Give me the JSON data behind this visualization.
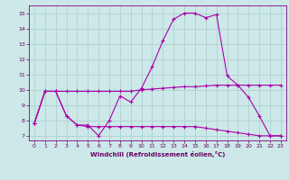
{
  "title": "",
  "xlabel": "Windchill (Refroidissement éolien,°C)",
  "background_color": "#cce8e8",
  "grid_color": "#aacccc",
  "line_color": "#aa00aa",
  "xlim": [
    -0.5,
    23.5
  ],
  "ylim": [
    6.7,
    15.5
  ],
  "yticks": [
    7,
    8,
    9,
    10,
    11,
    12,
    13,
    14,
    15
  ],
  "xticks": [
    0,
    1,
    2,
    3,
    4,
    5,
    6,
    7,
    8,
    9,
    10,
    11,
    12,
    13,
    14,
    15,
    16,
    17,
    18,
    19,
    20,
    21,
    22,
    23
  ],
  "line1_x": [
    0,
    1,
    2,
    3,
    4,
    5,
    6,
    7,
    8,
    9,
    10,
    11,
    12,
    13,
    14,
    15,
    16,
    17,
    18,
    19,
    20,
    21,
    22,
    23
  ],
  "line1_y": [
    7.8,
    9.9,
    9.9,
    8.3,
    7.7,
    7.7,
    7.0,
    8.0,
    9.6,
    9.2,
    10.1,
    11.5,
    13.2,
    14.6,
    15.0,
    15.0,
    14.7,
    14.9,
    10.9,
    10.3,
    9.5,
    8.3,
    7.0,
    7.0
  ],
  "line2_x": [
    0,
    1,
    2,
    3,
    4,
    5,
    6,
    7,
    8,
    9,
    10,
    11,
    12,
    13,
    14,
    15,
    16,
    17,
    18,
    19,
    20,
    21,
    22,
    23
  ],
  "line2_y": [
    7.8,
    9.9,
    9.9,
    8.3,
    7.7,
    7.6,
    7.6,
    7.6,
    7.6,
    7.6,
    7.6,
    7.6,
    7.6,
    7.6,
    7.6,
    7.6,
    7.5,
    7.4,
    7.3,
    7.2,
    7.1,
    7.0,
    7.0,
    7.0
  ],
  "line3_x": [
    0,
    1,
    2,
    3,
    4,
    5,
    6,
    7,
    8,
    9,
    10,
    11,
    12,
    13,
    14,
    15,
    16,
    17,
    18,
    19,
    20,
    21,
    22,
    23
  ],
  "line3_y": [
    7.8,
    9.9,
    9.9,
    9.9,
    9.9,
    9.9,
    9.9,
    9.9,
    9.9,
    9.9,
    10.0,
    10.05,
    10.1,
    10.15,
    10.2,
    10.2,
    10.25,
    10.3,
    10.3,
    10.3,
    10.3,
    10.3,
    10.3,
    10.3
  ]
}
